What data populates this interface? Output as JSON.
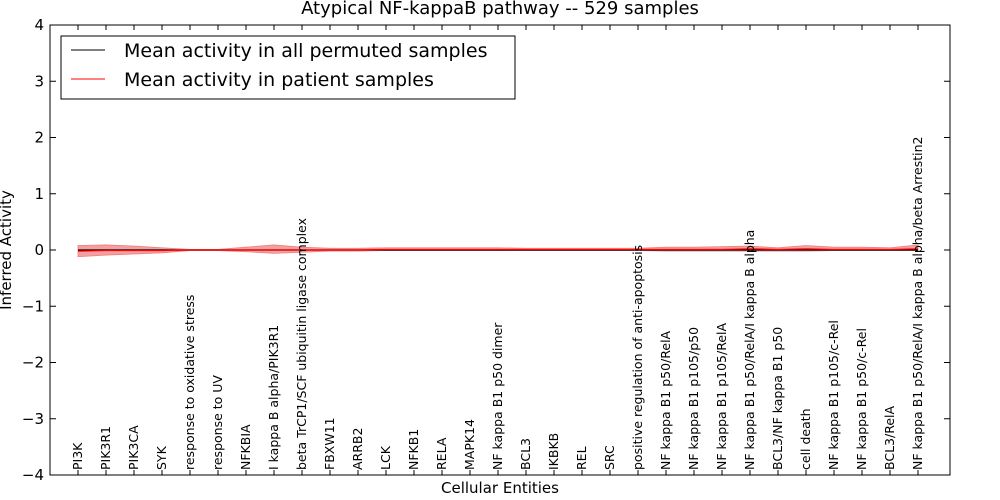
{
  "chart_data": {
    "type": "line",
    "title": "Atypical NF-kappaB pathway -- 529 samples",
    "xlabel": "Cellular Entities",
    "ylabel": "Inferred Activity",
    "ylim": [
      -4,
      4
    ],
    "yticks": [
      "−4",
      "−3",
      "−2",
      "−1",
      "0",
      "1",
      "2",
      "3",
      "4"
    ],
    "grid": false,
    "legend_position": "top-left",
    "categories": [
      "PI3K",
      "PIK3R1",
      "PIK3CA",
      "SYK",
      "response to oxidative stress",
      "response to UV",
      "NFKBIA",
      "I kappa B alpha/PIK3R1",
      "beta TrCP1/SCF ubiquitin ligase complex",
      "FBXW11",
      "ARRB2",
      "LCK",
      "NFKB1",
      "RELA",
      "MAPK14",
      "NF kappa B1 p50 dimer",
      "BCL3",
      "IKBKB",
      "REL",
      "SRC",
      "positive regulation of anti-apoptosis",
      "NF kappa B1 p50/RelA",
      "NF kappa B1 p105/p50",
      "NF kappa B1 p105/RelA",
      "NF kappa B1 p50/RelA/I kappa B alpha",
      "BCL3/NF kappa B1 p50",
      "cell death",
      "NF kappa B1 p105/c-Rel",
      "NF kappa B1 p50/c-Rel",
      "BCL3/RelA",
      "NF kappa B1 p50/RelA/I kappa B alpha/beta Arrestin2"
    ],
    "series": [
      {
        "name": "Mean activity in all permuted samples",
        "color": "#000000",
        "values": [
          0.0,
          0.0,
          0.0,
          0.0,
          0.0,
          0.0,
          0.0,
          0.0,
          0.0,
          0.0,
          0.0,
          0.0,
          0.0,
          0.0,
          0.0,
          0.0,
          0.0,
          0.0,
          0.0,
          0.0,
          0.0,
          0.0,
          0.0,
          0.0,
          0.0,
          0.0,
          0.0,
          0.0,
          0.0,
          0.0,
          0.0
        ]
      },
      {
        "name": "Mean activity in patient samples",
        "color": "#ff0000",
        "fill_color": "#f08080",
        "values": [
          -0.02,
          -0.01,
          -0.01,
          -0.01,
          0.0,
          0.0,
          0.0,
          0.0,
          0.0,
          0.0,
          0.0,
          0.01,
          0.01,
          0.01,
          0.01,
          0.01,
          0.01,
          0.01,
          0.01,
          0.01,
          0.01,
          0.01,
          0.01,
          0.01,
          0.02,
          0.01,
          0.02,
          0.01,
          0.01,
          0.01,
          0.02
        ],
        "lower": [
          -0.12,
          -0.09,
          -0.07,
          -0.05,
          -0.01,
          -0.01,
          -0.03,
          -0.06,
          -0.04,
          -0.02,
          -0.02,
          -0.01,
          -0.01,
          -0.01,
          -0.01,
          -0.01,
          -0.01,
          -0.01,
          -0.01,
          -0.01,
          -0.01,
          -0.02,
          -0.02,
          -0.02,
          -0.02,
          -0.02,
          -0.02,
          -0.01,
          -0.01,
          -0.01,
          -0.01
        ],
        "upper": [
          0.08,
          0.09,
          0.07,
          0.04,
          0.01,
          0.01,
          0.05,
          0.09,
          0.05,
          0.03,
          0.03,
          0.04,
          0.04,
          0.04,
          0.04,
          0.04,
          0.03,
          0.03,
          0.03,
          0.03,
          0.03,
          0.05,
          0.05,
          0.06,
          0.07,
          0.04,
          0.08,
          0.05,
          0.05,
          0.04,
          0.09
        ]
      }
    ]
  }
}
